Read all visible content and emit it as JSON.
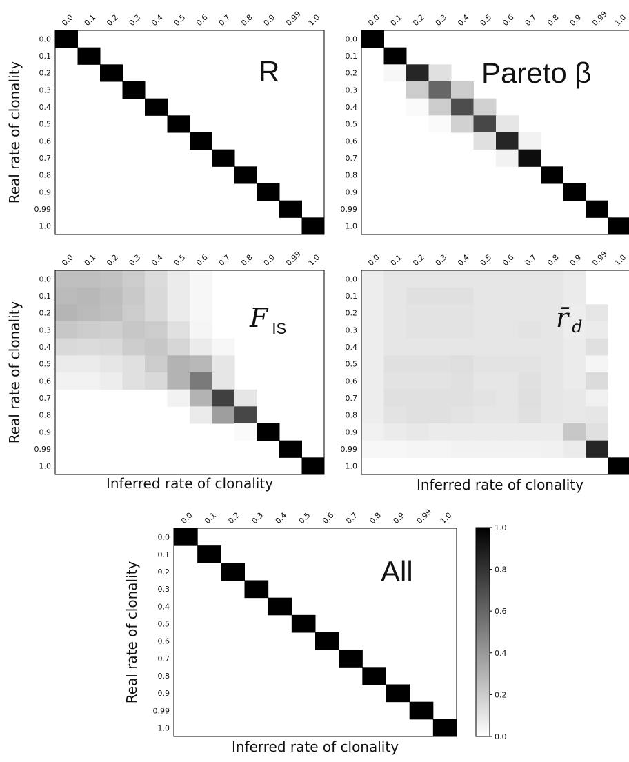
{
  "figure": {
    "ylabel": "Real rate of clonality",
    "xlabel": "Inferred rate of clonality",
    "tick_labels": [
      "0.0",
      "0.1",
      "0.2",
      "0.3",
      "0.4",
      "0.5",
      "0.6",
      "0.7",
      "0.8",
      "0.9",
      "0.99",
      "1.0"
    ],
    "colorbar": {
      "min": 0.0,
      "max": 1.0,
      "ticks": [
        "0.0",
        "0.2",
        "0.4",
        "0.6",
        "0.8",
        "1.0"
      ],
      "colormap": "grayscale white-to-black"
    }
  },
  "chart_data": [
    {
      "type": "heatmap",
      "panel_label": "R",
      "xlabel": "",
      "ylabel": "Real rate of clonality",
      "x_categories": [
        "0.0",
        "0.1",
        "0.2",
        "0.3",
        "0.4",
        "0.5",
        "0.6",
        "0.7",
        "0.8",
        "0.9",
        "0.99",
        "1.0"
      ],
      "y_categories": [
        "0.0",
        "0.1",
        "0.2",
        "0.3",
        "0.4",
        "0.5",
        "0.6",
        "0.7",
        "0.8",
        "0.9",
        "0.99",
        "1.0"
      ],
      "zlim": [
        0,
        1
      ],
      "values": [
        [
          1,
          0,
          0,
          0,
          0,
          0,
          0,
          0,
          0,
          0,
          0,
          0
        ],
        [
          0,
          1,
          0,
          0,
          0,
          0,
          0,
          0,
          0,
          0,
          0,
          0
        ],
        [
          0,
          0,
          1,
          0,
          0,
          0,
          0,
          0,
          0,
          0,
          0,
          0
        ],
        [
          0,
          0,
          0,
          1,
          0,
          0,
          0,
          0,
          0,
          0,
          0,
          0
        ],
        [
          0,
          0,
          0,
          0,
          1,
          0,
          0,
          0,
          0,
          0,
          0,
          0
        ],
        [
          0,
          0,
          0,
          0,
          0,
          1,
          0,
          0,
          0,
          0,
          0,
          0
        ],
        [
          0,
          0,
          0,
          0,
          0,
          0,
          1,
          0,
          0,
          0,
          0,
          0
        ],
        [
          0,
          0,
          0,
          0,
          0,
          0,
          0,
          1,
          0,
          0,
          0,
          0
        ],
        [
          0,
          0,
          0,
          0,
          0,
          0,
          0,
          0,
          1,
          0,
          0,
          0
        ],
        [
          0,
          0,
          0,
          0,
          0,
          0,
          0,
          0,
          0,
          1,
          0,
          0
        ],
        [
          0,
          0,
          0,
          0,
          0,
          0,
          0,
          0,
          0,
          0,
          1,
          0
        ],
        [
          0,
          0,
          0,
          0,
          0,
          0,
          0,
          0,
          0,
          0,
          0,
          1
        ]
      ]
    },
    {
      "type": "heatmap",
      "panel_label": "Pareto β",
      "xlabel": "",
      "ylabel": "",
      "x_categories": [
        "0.0",
        "0.1",
        "0.2",
        "0.3",
        "0.4",
        "0.5",
        "0.6",
        "0.7",
        "0.8",
        "0.9",
        "0.99",
        "1.0"
      ],
      "y_categories": [
        "0.0",
        "0.1",
        "0.2",
        "0.3",
        "0.4",
        "0.5",
        "0.6",
        "0.7",
        "0.8",
        "0.9",
        "0.99",
        "1.0"
      ],
      "zlim": [
        0,
        1
      ],
      "values": [
        [
          1,
          0,
          0,
          0,
          0,
          0,
          0,
          0,
          0,
          0,
          0,
          0
        ],
        [
          0,
          1,
          0,
          0,
          0,
          0,
          0,
          0,
          0,
          0,
          0,
          0
        ],
        [
          0,
          0.03,
          0.85,
          0.12,
          0,
          0,
          0,
          0,
          0,
          0,
          0,
          0
        ],
        [
          0,
          0,
          0.2,
          0.6,
          0.2,
          0,
          0,
          0,
          0,
          0,
          0,
          0
        ],
        [
          0,
          0,
          0.02,
          0.2,
          0.7,
          0.18,
          0,
          0,
          0,
          0,
          0,
          0
        ],
        [
          0,
          0,
          0,
          0.02,
          0.18,
          0.72,
          0.1,
          0,
          0,
          0,
          0,
          0
        ],
        [
          0,
          0,
          0,
          0,
          0,
          0.12,
          0.85,
          0.05,
          0,
          0,
          0,
          0
        ],
        [
          0,
          0,
          0,
          0,
          0,
          0,
          0.05,
          0.95,
          0,
          0,
          0,
          0
        ],
        [
          0,
          0,
          0,
          0,
          0,
          0,
          0,
          0,
          1,
          0,
          0,
          0
        ],
        [
          0,
          0,
          0,
          0,
          0,
          0,
          0,
          0,
          0,
          1,
          0,
          0
        ],
        [
          0,
          0,
          0,
          0,
          0,
          0,
          0,
          0,
          0,
          0,
          1,
          0
        ],
        [
          0,
          0,
          0,
          0,
          0,
          0,
          0,
          0,
          0,
          0,
          0,
          1
        ]
      ]
    },
    {
      "type": "heatmap",
      "panel_label": "F",
      "panel_label_sub": "IS",
      "xlabel": "Inferred rate of clonality",
      "ylabel": "Real rate of clonality",
      "x_categories": [
        "0.0",
        "0.1",
        "0.2",
        "0.3",
        "0.4",
        "0.5",
        "0.6",
        "0.7",
        "0.8",
        "0.9",
        "0.99",
        "1.0"
      ],
      "y_categories": [
        "0.0",
        "0.1",
        "0.2",
        "0.3",
        "0.4",
        "0.5",
        "0.6",
        "0.7",
        "0.8",
        "0.9",
        "0.99",
        "1.0"
      ],
      "zlim": [
        0,
        1
      ],
      "values": [
        [
          0.25,
          0.25,
          0.24,
          0.2,
          0.14,
          0.08,
          0.03,
          0,
          0,
          0,
          0,
          0
        ],
        [
          0.27,
          0.28,
          0.26,
          0.21,
          0.15,
          0.08,
          0.03,
          0,
          0,
          0,
          0,
          0
        ],
        [
          0.29,
          0.27,
          0.25,
          0.2,
          0.15,
          0.08,
          0.03,
          0,
          0,
          0,
          0,
          0
        ],
        [
          0.22,
          0.2,
          0.19,
          0.22,
          0.2,
          0.12,
          0.04,
          0,
          0,
          0,
          0,
          0
        ],
        [
          0.15,
          0.14,
          0.15,
          0.2,
          0.22,
          0.16,
          0.08,
          0.03,
          0,
          0,
          0,
          0
        ],
        [
          0.08,
          0.08,
          0.1,
          0.12,
          0.2,
          0.3,
          0.28,
          0.1,
          0,
          0,
          0,
          0
        ],
        [
          0.05,
          0.05,
          0.07,
          0.12,
          0.15,
          0.3,
          0.52,
          0.1,
          0,
          0,
          0,
          0
        ],
        [
          0,
          0,
          0,
          0,
          0,
          0.05,
          0.3,
          0.75,
          0.1,
          0,
          0,
          0
        ],
        [
          0,
          0,
          0,
          0,
          0,
          0,
          0.08,
          0.38,
          0.72,
          0,
          0,
          0
        ],
        [
          0,
          0,
          0,
          0,
          0,
          0,
          0,
          0,
          0.02,
          1,
          0,
          0
        ],
        [
          0,
          0,
          0,
          0,
          0,
          0,
          0,
          0,
          0,
          0,
          1,
          0
        ],
        [
          0,
          0,
          0,
          0,
          0,
          0,
          0,
          0,
          0,
          0,
          0,
          1
        ]
      ]
    },
    {
      "type": "heatmap",
      "panel_label": "r̄",
      "panel_label_sub": "d",
      "xlabel": "Inferred rate of clonality",
      "ylabel": "",
      "x_categories": [
        "0.0",
        "0.1",
        "0.2",
        "0.3",
        "0.4",
        "0.5",
        "0.6",
        "0.7",
        "0.8",
        "0.9",
        "0.99",
        "1.0"
      ],
      "y_categories": [
        "0.0",
        "0.1",
        "0.2",
        "0.3",
        "0.4",
        "0.5",
        "0.6",
        "0.7",
        "0.8",
        "0.9",
        "0.99",
        "1.0"
      ],
      "zlim": [
        0,
        1
      ],
      "values": [
        [
          0.07,
          0.1,
          0.1,
          0.1,
          0.1,
          0.1,
          0.1,
          0.1,
          0.1,
          0.08,
          0,
          0
        ],
        [
          0.07,
          0.1,
          0.12,
          0.12,
          0.12,
          0.1,
          0.1,
          0.1,
          0.1,
          0.08,
          0,
          0
        ],
        [
          0.07,
          0.1,
          0.11,
          0.11,
          0.11,
          0.1,
          0.1,
          0.1,
          0.1,
          0.07,
          0.1,
          0
        ],
        [
          0.07,
          0.1,
          0.11,
          0.11,
          0.11,
          0.1,
          0.1,
          0.11,
          0.1,
          0.07,
          0.08,
          0
        ],
        [
          0.07,
          0.1,
          0.1,
          0.1,
          0.1,
          0.1,
          0.1,
          0.1,
          0.1,
          0.08,
          0.12,
          0
        ],
        [
          0.07,
          0.12,
          0.12,
          0.12,
          0.13,
          0.11,
          0.11,
          0.11,
          0.1,
          0.08,
          0.04,
          0
        ],
        [
          0.07,
          0.11,
          0.11,
          0.11,
          0.12,
          0.1,
          0.1,
          0.12,
          0.1,
          0.08,
          0.14,
          0
        ],
        [
          0.07,
          0.12,
          0.12,
          0.12,
          0.12,
          0.11,
          0.1,
          0.13,
          0.1,
          0.09,
          0.06,
          0
        ],
        [
          0.07,
          0.11,
          0.12,
          0.12,
          0.11,
          0.1,
          0.1,
          0.12,
          0.1,
          0.09,
          0.1,
          0
        ],
        [
          0.06,
          0.08,
          0.09,
          0.08,
          0.08,
          0.08,
          0.08,
          0.08,
          0.08,
          0.22,
          0.12,
          0
        ],
        [
          0.03,
          0.03,
          0.04,
          0.04,
          0.05,
          0.05,
          0.05,
          0.05,
          0.06,
          0.08,
          0.85,
          0
        ],
        [
          0,
          0,
          0,
          0,
          0,
          0,
          0,
          0,
          0,
          0,
          0,
          1
        ]
      ]
    },
    {
      "type": "heatmap",
      "panel_label": "All",
      "xlabel": "Inferred rate of clonality",
      "ylabel": "Real rate of clonality",
      "x_categories": [
        "0.0",
        "0.1",
        "0.2",
        "0.3",
        "0.4",
        "0.5",
        "0.6",
        "0.7",
        "0.8",
        "0.9",
        "0.99",
        "1.0"
      ],
      "y_categories": [
        "0.0",
        "0.1",
        "0.2",
        "0.3",
        "0.4",
        "0.5",
        "0.6",
        "0.7",
        "0.8",
        "0.9",
        "0.99",
        "1.0"
      ],
      "zlim": [
        0,
        1
      ],
      "values": [
        [
          1,
          0,
          0,
          0,
          0,
          0,
          0,
          0,
          0,
          0,
          0,
          0
        ],
        [
          0,
          1,
          0,
          0,
          0,
          0,
          0,
          0,
          0,
          0,
          0,
          0
        ],
        [
          0,
          0,
          1,
          0,
          0,
          0,
          0,
          0,
          0,
          0,
          0,
          0
        ],
        [
          0,
          0,
          0,
          1,
          0,
          0,
          0,
          0,
          0,
          0,
          0,
          0
        ],
        [
          0,
          0,
          0,
          0,
          1,
          0,
          0,
          0,
          0,
          0,
          0,
          0
        ],
        [
          0,
          0,
          0,
          0,
          0,
          1,
          0,
          0,
          0,
          0,
          0,
          0
        ],
        [
          0,
          0,
          0,
          0,
          0,
          0,
          1,
          0,
          0,
          0,
          0,
          0
        ],
        [
          0,
          0,
          0,
          0,
          0,
          0,
          0,
          1,
          0,
          0,
          0,
          0
        ],
        [
          0,
          0,
          0,
          0,
          0,
          0,
          0,
          0,
          1,
          0,
          0,
          0
        ],
        [
          0,
          0,
          0,
          0,
          0,
          0,
          0,
          0,
          0,
          1,
          0,
          0
        ],
        [
          0,
          0,
          0,
          0,
          0,
          0,
          0,
          0,
          0,
          0,
          1,
          0
        ],
        [
          0,
          0,
          0,
          0,
          0,
          0,
          0,
          0,
          0,
          0,
          0,
          1
        ]
      ]
    }
  ]
}
